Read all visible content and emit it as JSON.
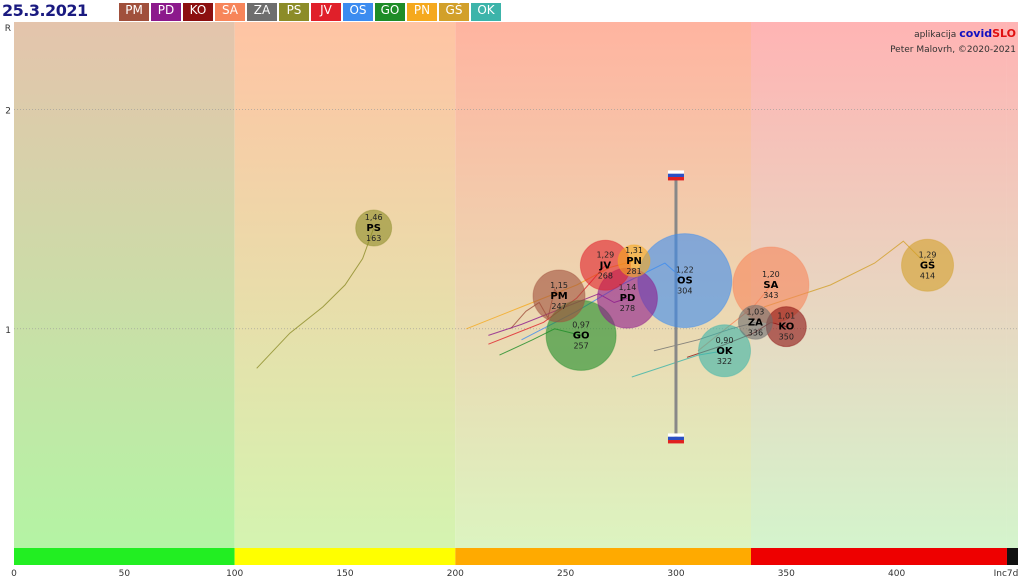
{
  "header": {
    "date": "25.3.2021",
    "regions": [
      {
        "code": "PM",
        "color": "#a0503c"
      },
      {
        "code": "PD",
        "color": "#8c1a8c"
      },
      {
        "code": "KO",
        "color": "#8c1010"
      },
      {
        "code": "SA",
        "color": "#f7855a"
      },
      {
        "code": "ZA",
        "color": "#6e6e6e"
      },
      {
        "code": "PS",
        "color": "#8c8c28"
      },
      {
        "code": "JV",
        "color": "#e0202a"
      },
      {
        "code": "OS",
        "color": "#3c8cf0"
      },
      {
        "code": "GO",
        "color": "#1e8c28"
      },
      {
        "code": "PN",
        "color": "#f5a91e"
      },
      {
        "code": "GŠ",
        "color": "#d2a02a"
      },
      {
        "code": "OK",
        "color": "#3cb4aa"
      }
    ]
  },
  "credit": {
    "line1_prefix": "aplikacija",
    "brand_part1": "covid",
    "brand_part2": "SLO",
    "line2": "Peter Malovrh, ©2020-2021"
  },
  "chart_data": {
    "type": "scatter",
    "xlabel": "Inc7d",
    "ylabel": "R",
    "xlim": [
      0,
      455
    ],
    "ylim": [
      0,
      2.4
    ],
    "x_ticks": [
      0,
      50,
      100,
      150,
      200,
      250,
      300,
      350,
      400
    ],
    "y_ticks": [
      1,
      2
    ],
    "zones": [
      {
        "from": 0,
        "to": 100,
        "bar": "#22ee22",
        "top": "#e4c4ac",
        "bottom": "#b4f4a4"
      },
      {
        "from": 100,
        "to": 200,
        "bar": "#ffff00",
        "top": "#ffc4a4",
        "bottom": "#d4f4b0"
      },
      {
        "from": 200,
        "to": 334,
        "bar": "#ffaa00",
        "top": "#ffb4a0",
        "bottom": "#dcf4c0"
      },
      {
        "from": 334,
        "to": 450,
        "bar": "#ee0000",
        "top": "#ffb4b4",
        "bottom": "#d4f4cc"
      },
      {
        "from": 450,
        "to": 455,
        "bar": "#111111",
        "top": "#ffb4b4",
        "bottom": "#d4f4cc"
      }
    ],
    "national": {
      "x": 300,
      "y_low": 0.5,
      "y_high": 1.7
    },
    "points": [
      {
        "code": "PM",
        "r": 1.15,
        "r_label": "1,15",
        "inc": 247,
        "size": 26,
        "color": "#a0503c",
        "trail": [
          [
            225,
            1.0
          ],
          [
            232,
            1.08
          ],
          [
            238,
            1.12
          ],
          [
            242,
            1.05
          ],
          [
            245,
            1.18
          ],
          [
            247,
            1.15
          ]
        ]
      },
      {
        "code": "PD",
        "r": 1.14,
        "r_label": "1,14",
        "inc": 278,
        "size": 30,
        "color": "#8c1a8c",
        "trail": [
          [
            215,
            0.97
          ],
          [
            230,
            1.02
          ],
          [
            250,
            1.1
          ],
          [
            265,
            1.16
          ],
          [
            272,
            1.12
          ],
          [
            278,
            1.14
          ]
        ]
      },
      {
        "code": "KO",
        "r": 1.01,
        "r_label": "1,01",
        "inc": 350,
        "size": 20,
        "color": "#8c1010",
        "trail": [
          [
            305,
            0.87
          ],
          [
            320,
            0.92
          ],
          [
            335,
            0.98
          ],
          [
            343,
            1.03
          ],
          [
            350,
            1.01
          ]
        ]
      },
      {
        "code": "SA",
        "r": 1.2,
        "r_label": "1,20",
        "inc": 343,
        "size": 38,
        "color": "#f7855a",
        "trail": [
          [
            310,
            0.9
          ],
          [
            325,
            1.02
          ],
          [
            335,
            1.1
          ],
          [
            340,
            1.16
          ],
          [
            343,
            1.2
          ]
        ]
      },
      {
        "code": "ZA",
        "r": 1.03,
        "r_label": "1,03",
        "inc": 336,
        "size": 17,
        "color": "#6e6e6e",
        "trail": [
          [
            290,
            0.9
          ],
          [
            310,
            0.95
          ],
          [
            325,
            1.0
          ],
          [
            336,
            1.03
          ]
        ]
      },
      {
        "code": "PS",
        "r": 1.46,
        "r_label": "1,46",
        "inc": 163,
        "size": 18,
        "color": "#8c8c28",
        "trail": [
          [
            110,
            0.82
          ],
          [
            125,
            0.98
          ],
          [
            140,
            1.1
          ],
          [
            150,
            1.2
          ],
          [
            158,
            1.32
          ],
          [
            163,
            1.46
          ]
        ]
      },
      {
        "code": "JV",
        "r": 1.29,
        "r_label": "1,29",
        "inc": 268,
        "size": 25,
        "color": "#e0202a",
        "trail": [
          [
            215,
            0.93
          ],
          [
            240,
            1.03
          ],
          [
            255,
            1.14
          ],
          [
            262,
            1.22
          ],
          [
            268,
            1.29
          ]
        ]
      },
      {
        "code": "OS",
        "r": 1.22,
        "r_label": "1,22",
        "inc": 304,
        "size": 47,
        "color": "#3c8cf0",
        "trail": [
          [
            230,
            0.95
          ],
          [
            255,
            1.08
          ],
          [
            275,
            1.2
          ],
          [
            295,
            1.3
          ],
          [
            304,
            1.22
          ]
        ]
      },
      {
        "code": "GO",
        "r": 0.97,
        "r_label": "0,97",
        "inc": 257,
        "size": 35,
        "color": "#1e8c28",
        "trail": [
          [
            220,
            0.88
          ],
          [
            235,
            0.95
          ],
          [
            245,
            1.0
          ],
          [
            257,
            0.97
          ]
        ]
      },
      {
        "code": "PN",
        "r": 1.31,
        "r_label": "1,31",
        "inc": 281,
        "size": 16,
        "color": "#f5a91e",
        "trail": [
          [
            205,
            1.0
          ],
          [
            230,
            1.1
          ],
          [
            255,
            1.2
          ],
          [
            270,
            1.28
          ],
          [
            281,
            1.31
          ]
        ]
      },
      {
        "code": "GŠ",
        "r": 1.29,
        "r_label": "1,29",
        "inc": 414,
        "size": 26,
        "color": "#d2a02a",
        "trail": [
          [
            340,
            1.1
          ],
          [
            370,
            1.2
          ],
          [
            390,
            1.3
          ],
          [
            403,
            1.4
          ],
          [
            414,
            1.29
          ]
        ]
      },
      {
        "code": "OK",
        "r": 0.9,
        "r_label": "0,90",
        "inc": 322,
        "size": 26,
        "color": "#3cb4aa",
        "trail": [
          [
            280,
            0.78
          ],
          [
            295,
            0.83
          ],
          [
            310,
            0.88
          ],
          [
            322,
            0.9
          ]
        ]
      }
    ]
  }
}
